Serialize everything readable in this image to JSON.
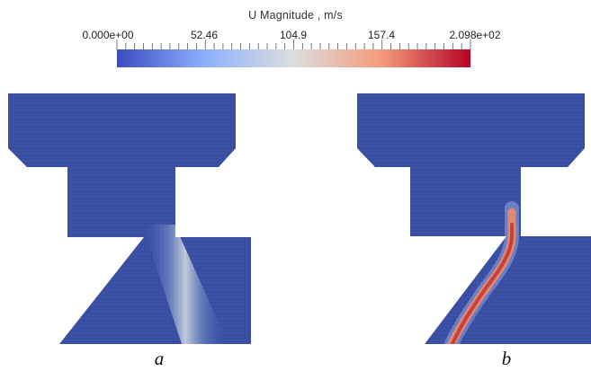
{
  "colorbar": {
    "title": "U Magnitude , m/s",
    "tick_labels": [
      "0.000e+00",
      "52.46",
      "104.9",
      "157.4",
      "2.098e+02"
    ],
    "min": 0,
    "max": 209.8,
    "colors": {
      "low": "#3b4cc0",
      "mid": "#dddddd",
      "high": "#b40426"
    }
  },
  "panels": [
    {
      "label": "a",
      "jet_peak_velocity": 95
    },
    {
      "label": "b",
      "jet_peak_velocity": 175
    }
  ],
  "colors": {
    "field": "#3c52a8",
    "mesh": "#1e2a6a"
  }
}
